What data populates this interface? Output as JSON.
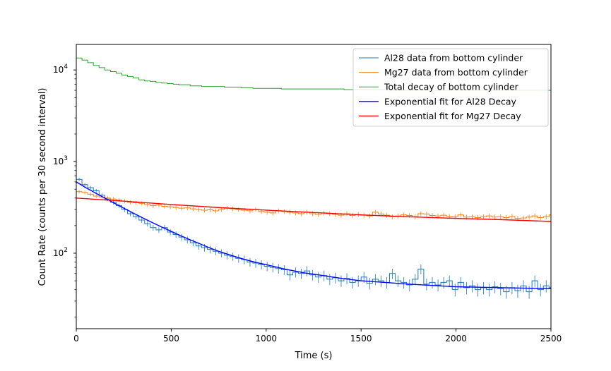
{
  "chart_data": {
    "type": "line",
    "title": "",
    "xlabel": "Time (s)",
    "ylabel": "Count Rate (counts per 30 second interval)",
    "xlim": [
      0,
      2500
    ],
    "ylim": [
      15,
      19000
    ],
    "y_scale": "log",
    "grid": false,
    "legend_position": "top-right",
    "x_ticks": [
      {
        "value": 0,
        "label": "0"
      },
      {
        "value": 500,
        "label": "500"
      },
      {
        "value": 1000,
        "label": "1000"
      },
      {
        "value": 1500,
        "label": "1500"
      },
      {
        "value": 2000,
        "label": "2000"
      },
      {
        "value": 2500,
        "label": "2500"
      }
    ],
    "y_ticks": [
      {
        "value": 100,
        "base": "10",
        "exp": "2"
      },
      {
        "value": 1000,
        "base": "10",
        "exp": "3"
      },
      {
        "value": 10000,
        "base": "10",
        "exp": "4"
      }
    ],
    "bin_width": 30,
    "series": [
      {
        "name": "Al28 data from bottom cylinder",
        "kind": "step",
        "color": "#1f77b4",
        "error_bars": true,
        "values": [
          640,
          560,
          520,
          480,
          430,
          390,
          360,
          330,
          300,
          270,
          250,
          230,
          210,
          190,
          180,
          190,
          170,
          160,
          150,
          140,
          130,
          120,
          115,
          110,
          105,
          100,
          95,
          92,
          88,
          85,
          80,
          78,
          75,
          72,
          70,
          68,
          66,
          58,
          62,
          60,
          64,
          58,
          55,
          57,
          52,
          54,
          50,
          53,
          48,
          50,
          55,
          47,
          52,
          50,
          48,
          60,
          50,
          48,
          45,
          52,
          67,
          46,
          48,
          45,
          48,
          50,
          40,
          48,
          42,
          44,
          40,
          42,
          40,
          43,
          41,
          38,
          42,
          39,
          44,
          38,
          50,
          40,
          44,
          42,
          40,
          44,
          42,
          55,
          44,
          50,
          58,
          60,
          48,
          42,
          44,
          40,
          38,
          42,
          36,
          40,
          38,
          34,
          44,
          36,
          40,
          42,
          30,
          44,
          38,
          45,
          46,
          36,
          40,
          42,
          38,
          44,
          40,
          44,
          38,
          36,
          40,
          44,
          38,
          42,
          36,
          40,
          42,
          44,
          40,
          42,
          38,
          40,
          38,
          42,
          36,
          38,
          40
        ]
      },
      {
        "name": "Mg27 data from bottom cylinder",
        "kind": "step",
        "color": "#ff7f0e",
        "error_bars": true,
        "values": [
          470,
          460,
          440,
          420,
          410,
          400,
          390,
          380,
          370,
          360,
          355,
          350,
          340,
          330,
          335,
          325,
          320,
          315,
          310,
          312,
          305,
          300,
          295,
          298,
          290,
          300,
          310,
          305,
          300,
          295,
          290,
          300,
          285,
          280,
          275,
          290,
          285,
          280,
          275,
          270,
          280,
          270,
          265,
          275,
          270,
          265,
          260,
          270,
          258,
          265,
          260,
          255,
          280,
          268,
          260,
          250,
          255,
          262,
          258,
          250,
          270,
          268,
          258,
          255,
          260,
          252,
          250,
          262,
          248,
          250,
          245,
          250,
          255,
          248,
          250,
          245,
          252,
          240,
          242,
          248,
          255,
          245,
          250,
          262,
          280,
          250,
          245,
          242,
          250,
          248,
          245,
          240,
          244,
          238,
          250,
          248,
          242,
          238,
          236,
          240,
          242,
          245,
          238,
          235,
          240,
          242,
          236,
          230,
          232,
          238,
          235,
          215,
          230,
          232,
          228,
          235,
          232,
          236,
          240,
          230,
          248,
          250,
          238,
          232,
          226,
          228,
          225,
          230,
          232,
          226,
          240,
          235,
          228,
          226,
          230,
          232,
          208
        ]
      },
      {
        "name": "Total decay of bottom cylinder",
        "kind": "step",
        "color": "#2ca02c",
        "error_bars": false,
        "values": [
          13500,
          12800,
          12000,
          11200,
          10600,
          10000,
          9600,
          9200,
          8800,
          8500,
          8200,
          7800,
          7600,
          7500,
          7300,
          7200,
          7100,
          7000,
          6900,
          6900,
          6700,
          6700,
          6600,
          6600,
          6600,
          6600,
          6500,
          6500,
          6500,
          6400,
          6400,
          6300,
          6300,
          6300,
          6300,
          6300,
          6200,
          6200,
          6200,
          6200,
          6200,
          6200,
          6200,
          6200,
          6200,
          6200,
          6200,
          6100,
          6100,
          6100,
          6100,
          6100,
          6100,
          6100,
          6100,
          6000,
          6000,
          6000,
          6000,
          6000,
          6000,
          6000,
          6000,
          6000,
          6000,
          6000,
          6000,
          6000,
          6000,
          6000,
          6000,
          6000,
          6000,
          6000,
          6000,
          6000,
          6000,
          6000,
          6000,
          6000,
          6000,
          6000,
          6000,
          6000,
          5900,
          5900,
          5900,
          5900,
          5900,
          5900,
          5900,
          5900,
          5900,
          5900,
          5900,
          5900,
          5900,
          5900,
          5900,
          5900,
          5900,
          5900,
          5900,
          5900,
          5900,
          5900,
          5900,
          5900,
          5900,
          5900,
          5900,
          5900,
          5900,
          5900,
          5900,
          5900,
          5900,
          5900,
          5900,
          5900,
          5900,
          5900,
          5900,
          5900,
          5900,
          5900,
          5900,
          5900,
          5900,
          5900,
          5900,
          5900,
          5900,
          5900,
          5900,
          5900,
          5900,
          5600
        ]
      },
      {
        "name": "Exponential fit for Al28 Decay",
        "kind": "fit",
        "color": "#0000ff",
        "x": [
          0,
          50,
          100,
          150,
          200,
          250,
          300,
          350,
          400,
          450,
          500,
          550,
          600,
          650,
          700,
          750,
          800,
          850,
          900,
          950,
          1000,
          1100,
          1200,
          1300,
          1400,
          1500,
          1750,
          2000,
          2250,
          2500
        ],
        "values": [
          600,
          520,
          455,
          400,
          352,
          310,
          274,
          243,
          216,
          193,
          173,
          155,
          140,
          127,
          115,
          105,
          97,
          90,
          84,
          79,
          75,
          67,
          61,
          57,
          53,
          50,
          46,
          43,
          42,
          41
        ]
      },
      {
        "name": "Exponential fit for Mg27 Decay",
        "kind": "fit",
        "color": "#ff0000",
        "x": [
          0,
          250,
          500,
          750,
          1000,
          1250,
          1500,
          1750,
          2000,
          2250,
          2500
        ],
        "values": [
          400,
          370,
          340,
          315,
          295,
          278,
          262,
          250,
          240,
          232,
          222
        ]
      }
    ]
  }
}
